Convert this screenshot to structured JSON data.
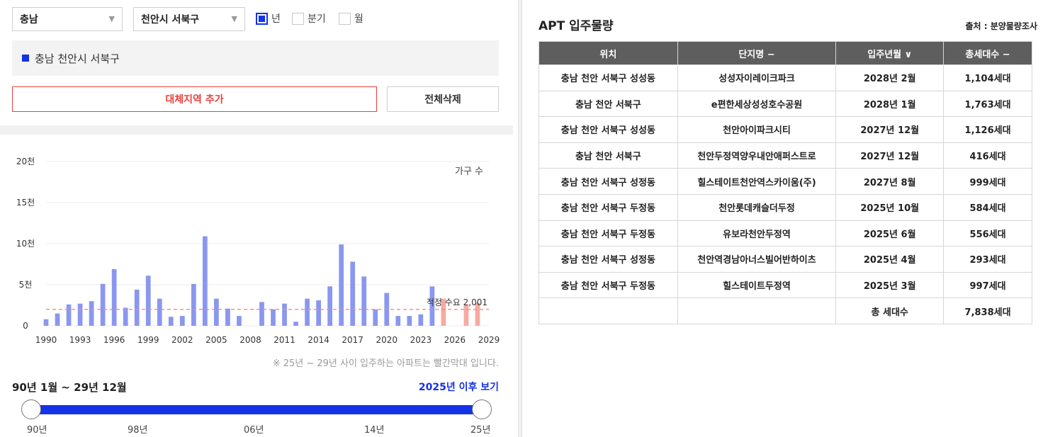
{
  "filters": {
    "province": "충남",
    "district": "천안시 서북구",
    "period_options": [
      {
        "label": "년",
        "checked": true
      },
      {
        "label": "분기",
        "checked": false
      },
      {
        "label": "월",
        "checked": false
      }
    ]
  },
  "selected_region": "충남 천안시 서북구",
  "buttons": {
    "add_region": "대체지역 추가",
    "delete_all": "전체삭제"
  },
  "chart_data": {
    "type": "bar",
    "legend": "가구 수",
    "y_ticks": [
      "0",
      "5천",
      "10천",
      "15천",
      "20천"
    ],
    "x_ticks": [
      "1990",
      "1993",
      "1996",
      "1999",
      "2002",
      "2005",
      "2008",
      "2011",
      "2014",
      "2017",
      "2020",
      "2023",
      "2026",
      "2029"
    ],
    "ylim": [
      0,
      20000
    ],
    "xlim": [
      1990,
      2029
    ],
    "x": [
      1990,
      1991,
      1992,
      1993,
      1994,
      1995,
      1996,
      1997,
      1998,
      1999,
      2000,
      2001,
      2002,
      2003,
      2004,
      2005,
      2006,
      2007,
      2008,
      2009,
      2010,
      2011,
      2012,
      2013,
      2014,
      2015,
      2016,
      2017,
      2018,
      2019,
      2020,
      2021,
      2022,
      2023,
      2024,
      2025,
      2026,
      2027,
      2028,
      2029
    ],
    "values": [
      800,
      1500,
      2600,
      2700,
      3000,
      5100,
      6900,
      2200,
      4400,
      6100,
      3300,
      1100,
      1200,
      5100,
      10900,
      3300,
      2100,
      1200,
      0,
      2900,
      2000,
      2700,
      500,
      3300,
      3100,
      4800,
      9900,
      7800,
      6000,
      2000,
      4000,
      1200,
      1200,
      1400,
      4800,
      3300,
      0,
      2600,
      2800,
      0
    ],
    "future_from": 2025,
    "colors": {
      "past": "#8a97f0",
      "future": "#f7aaa0",
      "reference": "#f28b82"
    },
    "reference": {
      "label": "적정 수요 2,001",
      "value": 2001
    }
  },
  "note": "※ 25년 ~ 29년 사이 입주하는 아파트는 빨간막대 입니다.",
  "range": {
    "text": "90년 1월 ~ 29년 12월",
    "after_link": "2025년 이후 보기",
    "labels": [
      "90년",
      "98년",
      "06년",
      "14년",
      "25년"
    ]
  },
  "apt": {
    "title": "APT 입주물량",
    "source": "출처 : 분양물량조사",
    "headers": [
      "위치",
      "단지명 −",
      "입주년월 ∨",
      "총세대수 −"
    ],
    "rows": [
      [
        "충남 천안 서북구 성성동",
        "성성자이레이크파크",
        "2028년 2월",
        "1,104세대"
      ],
      [
        "충남 천안 서북구",
        "e편한세상성성호수공원",
        "2028년 1월",
        "1,763세대"
      ],
      [
        "충남 천안 서북구 성성동",
        "천안아이파크시티",
        "2027년 12월",
        "1,126세대"
      ],
      [
        "충남 천안 서북구",
        "천안두정역양우내안애퍼스트로",
        "2027년 12월",
        "416세대"
      ],
      [
        "충남 천안 서북구 성정동",
        "힐스테이트천안역스카이움(주)",
        "2027년 8월",
        "999세대"
      ],
      [
        "충남 천안 서북구 두정동",
        "천안롯데캐슬더두정",
        "2025년 10월",
        "584세대"
      ],
      [
        "충남 천안 서북구 두정동",
        "유보라천안두정역",
        "2025년 6월",
        "556세대"
      ],
      [
        "충남 천안 서북구 성정동",
        "천안역경남아너스빌어반하이츠",
        "2025년 4월",
        "293세대"
      ],
      [
        "충남 천안 서북구 두정동",
        "힐스테이트두정역",
        "2025년 3월",
        "997세대"
      ]
    ],
    "total_label": "총 세대수",
    "total_value": "7,838세대"
  }
}
